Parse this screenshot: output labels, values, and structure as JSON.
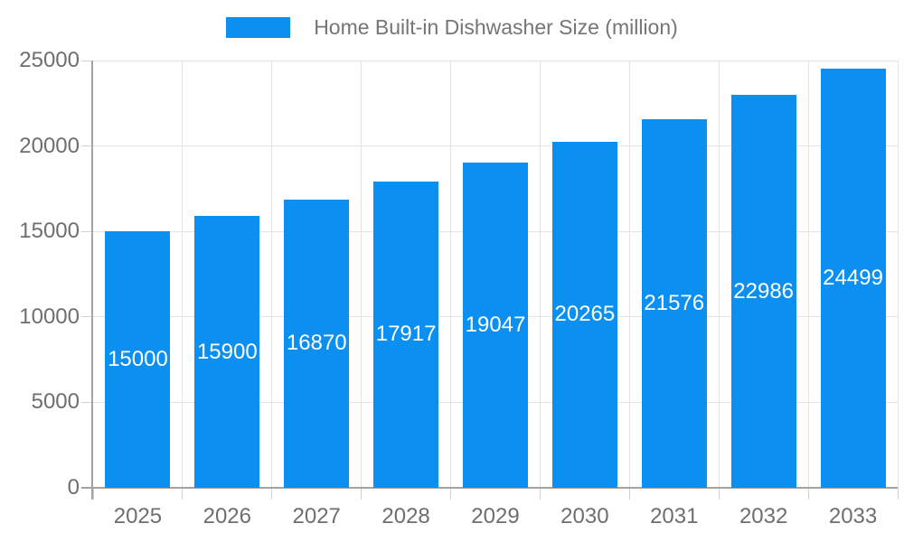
{
  "legend": {
    "label": "Home Built-in Dishwasher Size (million)"
  },
  "chart_data": {
    "type": "bar",
    "title": "Home Built-in Dishwasher Size (million)",
    "series_name": "Home Built-in Dishwasher Size (million)",
    "categories": [
      "2025",
      "2026",
      "2027",
      "2028",
      "2029",
      "2030",
      "2031",
      "2032",
      "2033"
    ],
    "values": [
      15000,
      15900,
      16870,
      17917,
      19047,
      20265,
      21576,
      22986,
      24499
    ],
    "xlabel": "",
    "ylabel": "",
    "ylim": [
      0,
      25000
    ],
    "yticks": [
      0,
      5000,
      10000,
      15000,
      20000,
      25000
    ],
    "grid": true,
    "legend_position": "top-center",
    "value_labels": "inside-center",
    "bar_color": "#0b90f2",
    "value_label_color": "#ffffff",
    "axis_text_color": "#6e6e6e",
    "grid_color": "#e4e4e4",
    "axis_line_color": "#a3a3a3",
    "background_color": "#ffffff"
  }
}
